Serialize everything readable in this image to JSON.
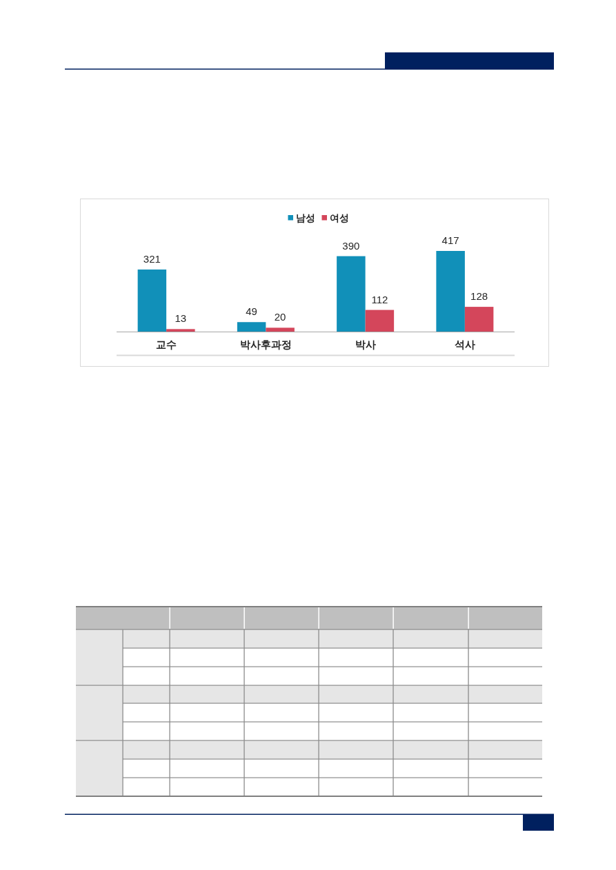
{
  "chart_data": {
    "type": "bar",
    "categories": [
      "교수",
      "박사후과정",
      "박사",
      "석사"
    ],
    "series": [
      {
        "name": "남성",
        "color": "#1190b9",
        "values": [
          321,
          49,
          390,
          417
        ]
      },
      {
        "name": "여성",
        "color": "#d4465b",
        "values": [
          13,
          20,
          112,
          128
        ]
      }
    ],
    "data_labels": true,
    "legend": "top"
  }
}
